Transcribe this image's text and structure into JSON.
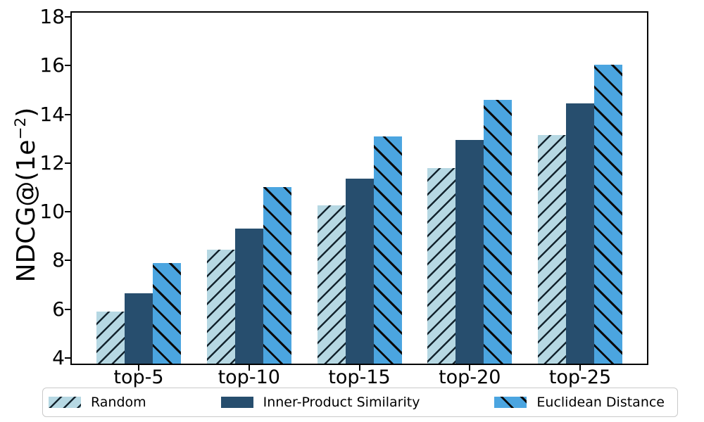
{
  "chart_data": {
    "type": "bar",
    "title": "",
    "categories": [
      "top-5",
      "top-10",
      "top-15",
      "top-20",
      "top-25"
    ],
    "series": [
      {
        "name": "Random",
        "values": [
          5.9,
          8.45,
          10.25,
          11.8,
          13.15
        ],
        "color": "#b6d8e3",
        "hatch": "/",
        "hatch_color": "#14242e"
      },
      {
        "name": "Inner-Product Similarity",
        "values": [
          6.65,
          9.3,
          11.35,
          12.95,
          14.45
        ],
        "color": "#274e6e",
        "hatch": "",
        "hatch_color": ""
      },
      {
        "name": "Euclidean Distance",
        "values": [
          7.9,
          11.0,
          13.1,
          14.6,
          16.05
        ],
        "color": "#4ba5e0",
        "hatch": "\\",
        "hatch_color": "#0a0a0a"
      }
    ],
    "xlabel": "",
    "ylabel": "NDCG@(1e−2)",
    "ylabel_parts": {
      "prefix": "NDCG@(1e",
      "superscript": "−2",
      "suffix": ")"
    },
    "ylim": [
      3.77,
      18.15
    ],
    "yticks": [
      4,
      6,
      8,
      10,
      12,
      14,
      16,
      18
    ],
    "grid": false,
    "legend_position": "bottom",
    "axis_color": "#000000",
    "legend_border_color": "#c9c9c9"
  }
}
